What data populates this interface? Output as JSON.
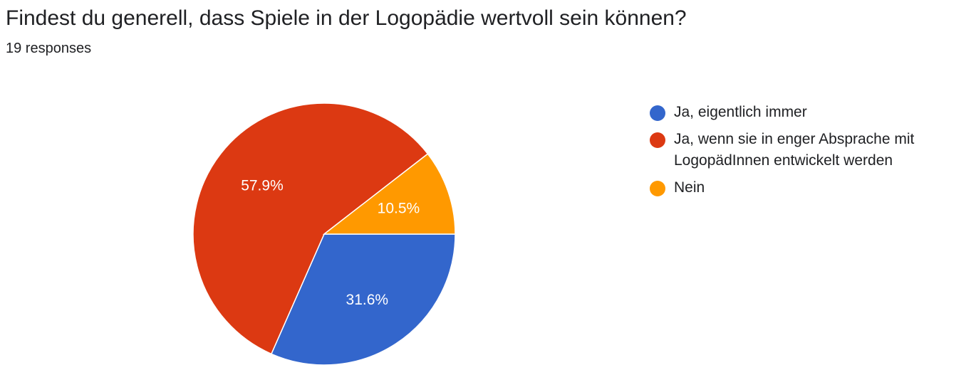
{
  "question": {
    "title": "Findest du generell, dass Spiele in der Logopädie wertvoll sein können?",
    "responses": "19 responses"
  },
  "chart_data": {
    "type": "pie",
    "slices": [
      {
        "label": "Ja, eigentlich immer",
        "value": 31.6,
        "display": "31.6%",
        "color": "#3366cc",
        "swatch_icon": "circle-icon"
      },
      {
        "label": "Ja, wenn sie in enger Absprache mit LogopädInnen entwickelt werden",
        "value": 57.9,
        "display": "57.9%",
        "color": "#dc3912",
        "swatch_icon": "circle-icon"
      },
      {
        "label": "Nein",
        "value": 10.5,
        "display": "10.5%",
        "color": "#ff9900",
        "swatch_icon": "circle-icon"
      }
    ],
    "legend_position": "right"
  }
}
